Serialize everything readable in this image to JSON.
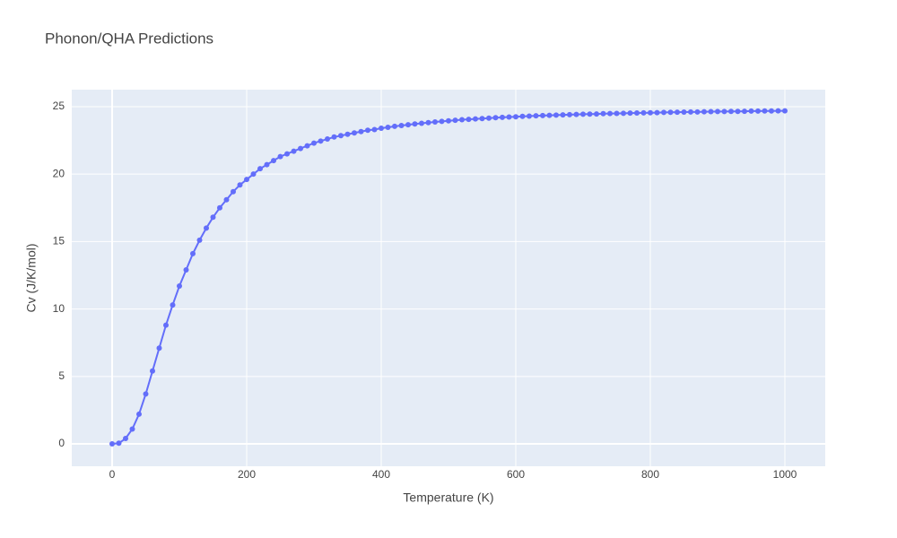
{
  "chart_data": {
    "type": "line",
    "title": "Phonon/QHA Predictions",
    "x_label": "Temperature (K)",
    "y_label": "Cv (J/K/mol)",
    "xlim": [
      -60,
      1060
    ],
    "ylim": [
      -1.66,
      26.26
    ],
    "xticks": [
      0,
      200,
      400,
      600,
      800,
      1000
    ],
    "yticks": [
      0,
      5,
      10,
      15,
      20,
      25
    ],
    "grid": true,
    "x": [
      0,
      10,
      20,
      30,
      40,
      50,
      60,
      70,
      80,
      90,
      100,
      110,
      120,
      130,
      140,
      150,
      160,
      170,
      180,
      190,
      200,
      210,
      220,
      230,
      240,
      250,
      260,
      270,
      280,
      290,
      300,
      310,
      320,
      330,
      340,
      350,
      360,
      370,
      380,
      390,
      400,
      410,
      420,
      430,
      440,
      450,
      460,
      470,
      480,
      490,
      500,
      510,
      520,
      530,
      540,
      550,
      560,
      570,
      580,
      590,
      600,
      610,
      620,
      630,
      640,
      650,
      660,
      670,
      680,
      690,
      700,
      710,
      720,
      730,
      740,
      750,
      760,
      770,
      780,
      790,
      800,
      810,
      820,
      830,
      840,
      850,
      860,
      870,
      880,
      890,
      900,
      910,
      920,
      930,
      940,
      950,
      960,
      970,
      980,
      990,
      1000
    ],
    "series": [
      {
        "name": "Cv",
        "color": "#636efa",
        "values": [
          0,
          0.05,
          0.4,
          1.1,
          2.2,
          3.7,
          5.4,
          7.1,
          8.8,
          10.3,
          11.7,
          12.9,
          14.1,
          15.1,
          16.0,
          16.8,
          17.5,
          18.1,
          18.7,
          19.2,
          19.6,
          20.0,
          20.4,
          20.7,
          21.0,
          21.3,
          21.5,
          21.7,
          21.9,
          22.1,
          22.3,
          22.45,
          22.6,
          22.75,
          22.85,
          22.95,
          23.05,
          23.15,
          23.25,
          23.3,
          23.4,
          23.47,
          23.54,
          23.6,
          23.66,
          23.72,
          23.77,
          23.82,
          23.87,
          23.91,
          23.95,
          23.99,
          24.03,
          24.06,
          24.09,
          24.12,
          24.15,
          24.18,
          24.21,
          24.23,
          24.25,
          24.28,
          24.3,
          24.32,
          24.34,
          24.36,
          24.37,
          24.39,
          24.41,
          24.42,
          24.44,
          24.45,
          24.46,
          24.48,
          24.49,
          24.5,
          24.51,
          24.52,
          24.53,
          24.54,
          24.55,
          24.56,
          24.57,
          24.58,
          24.59,
          24.6,
          24.61,
          24.61,
          24.62,
          24.63,
          24.64,
          24.64,
          24.65,
          24.65,
          24.66,
          24.67,
          24.67,
          24.68,
          24.68,
          24.69,
          24.69
        ]
      }
    ]
  }
}
